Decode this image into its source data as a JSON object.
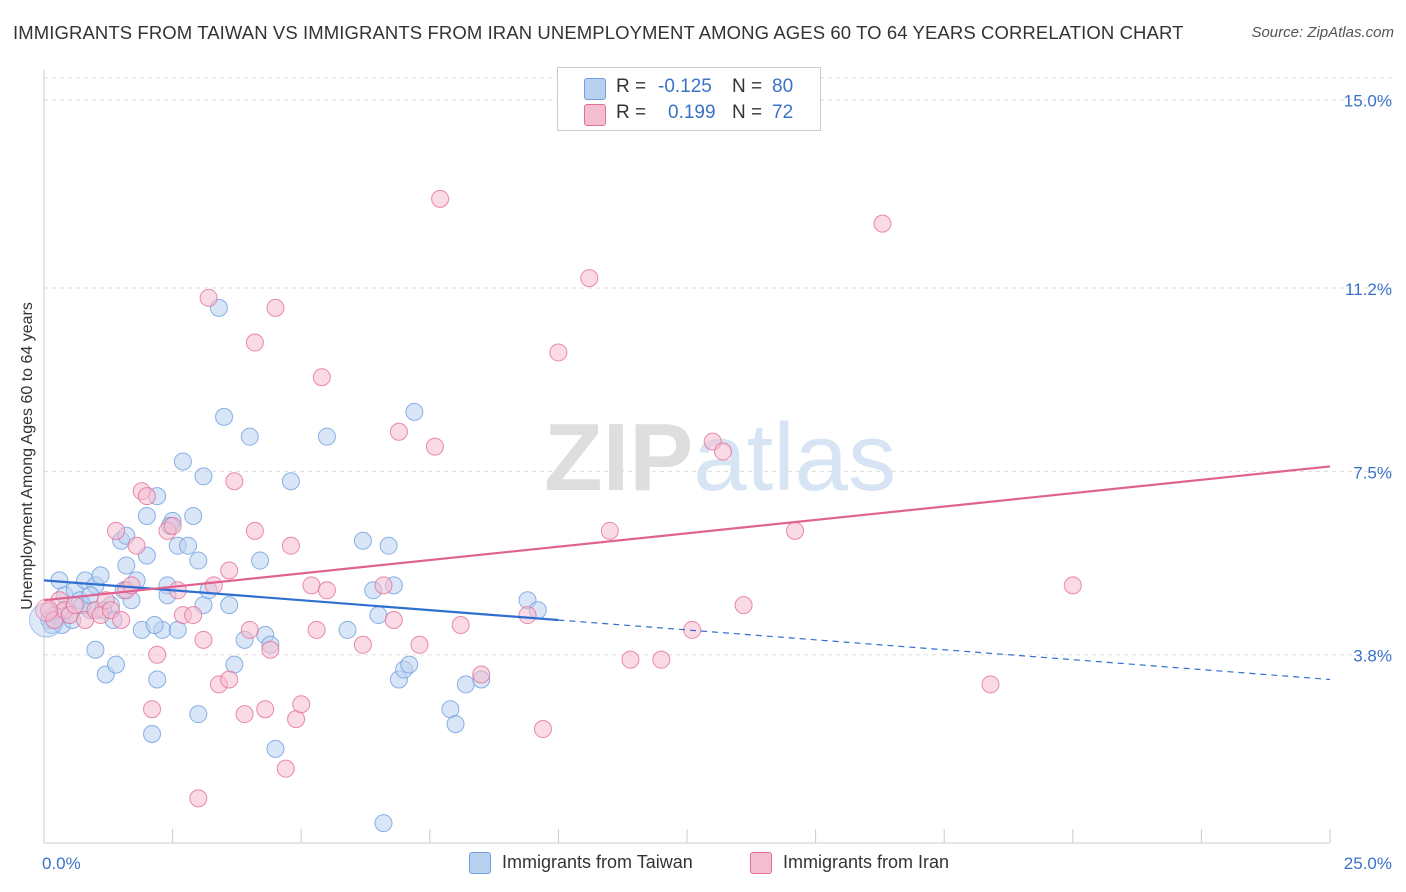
{
  "chart_data": {
    "type": "scatter",
    "title": "IMMIGRANTS FROM TAIWAN VS IMMIGRANTS FROM IRAN UNEMPLOYMENT AMONG AGES 60 TO 64 YEARS CORRELATION CHART",
    "source": "Source: ZipAtlas.com",
    "ylabel": "Unemployment Among Ages 60 to 64 years",
    "xlabel": "",
    "xlim": [
      0,
      25
    ],
    "ylim": [
      0,
      15.6
    ],
    "x_tick_labels": [
      "0.0%",
      "25.0%"
    ],
    "y_ticks": [
      3.8,
      7.5,
      11.2,
      15.0
    ],
    "y_tick_labels": [
      "3.8%",
      "7.5%",
      "11.2%",
      "15.0%"
    ],
    "grid": true,
    "watermark": "ZIPatlas",
    "legend": {
      "position": "top-center",
      "entries": [
        {
          "r_label": "R =",
          "r_value": "-0.125",
          "n_label": "N =",
          "n_value": "80"
        },
        {
          "r_label": "R =",
          "r_value": "0.199",
          "n_label": "N =",
          "n_value": "72"
        }
      ]
    },
    "series": [
      {
        "name": "Immigrants from Taiwan",
        "color": "#6f9fde",
        "fill": "#b9d1f1",
        "trend": {
          "x0": 0,
          "y0": 5.3,
          "x1": 10,
          "y1": 4.5,
          "dash_to_x": 25,
          "dash_to_y": 3.3
        },
        "points": [
          [
            0.1,
            4.5
          ],
          [
            0.2,
            4.6
          ],
          [
            0.3,
            5.3
          ],
          [
            0.4,
            4.7
          ],
          [
            0.4,
            5.0
          ],
          [
            0.5,
            4.6
          ],
          [
            0.6,
            5.1
          ],
          [
            0.7,
            4.9
          ],
          [
            0.8,
            5.3
          ],
          [
            0.9,
            4.7
          ],
          [
            1.0,
            5.2
          ],
          [
            1.1,
            5.4
          ],
          [
            1.0,
            3.9
          ],
          [
            1.2,
            3.4
          ],
          [
            1.3,
            4.8
          ],
          [
            1.4,
            3.6
          ],
          [
            1.5,
            6.1
          ],
          [
            1.6,
            5.6
          ],
          [
            1.6,
            6.2
          ],
          [
            1.7,
            4.9
          ],
          [
            1.8,
            5.3
          ],
          [
            1.9,
            4.3
          ],
          [
            2.0,
            6.6
          ],
          [
            2.0,
            5.8
          ],
          [
            2.1,
            2.2
          ],
          [
            2.2,
            3.3
          ],
          [
            2.2,
            7.0
          ],
          [
            2.3,
            4.3
          ],
          [
            2.4,
            5.2
          ],
          [
            2.4,
            5.0
          ],
          [
            2.5,
            6.5
          ],
          [
            2.6,
            4.3
          ],
          [
            2.6,
            6.0
          ],
          [
            2.7,
            7.7
          ],
          [
            2.8,
            6.0
          ],
          [
            2.9,
            6.6
          ],
          [
            3.0,
            5.7
          ],
          [
            3.0,
            2.6
          ],
          [
            3.1,
            7.4
          ],
          [
            3.1,
            4.8
          ],
          [
            3.2,
            5.1
          ],
          [
            3.4,
            10.8
          ],
          [
            3.5,
            8.6
          ],
          [
            3.6,
            4.8
          ],
          [
            3.7,
            3.6
          ],
          [
            3.9,
            4.1
          ],
          [
            4.0,
            8.2
          ],
          [
            4.2,
            5.7
          ],
          [
            4.3,
            4.2
          ],
          [
            4.4,
            4.0
          ],
          [
            4.5,
            1.9
          ],
          [
            4.8,
            7.3
          ],
          [
            5.5,
            8.2
          ],
          [
            5.9,
            4.3
          ],
          [
            6.2,
            6.1
          ],
          [
            6.4,
            5.1
          ],
          [
            6.5,
            4.6
          ],
          [
            6.6,
            0.4
          ],
          [
            6.7,
            6.0
          ],
          [
            6.8,
            5.2
          ],
          [
            6.9,
            3.3
          ],
          [
            7.0,
            3.5
          ],
          [
            7.1,
            3.6
          ],
          [
            7.2,
            8.7
          ],
          [
            7.9,
            2.7
          ],
          [
            8.0,
            2.4
          ],
          [
            8.2,
            3.2
          ],
          [
            8.5,
            3.3
          ],
          [
            9.4,
            4.9
          ],
          [
            9.6,
            4.7
          ],
          [
            0.15,
            4.4
          ],
          [
            0.35,
            4.4
          ],
          [
            0.55,
            4.5
          ],
          [
            0.75,
            4.8
          ],
          [
            0.9,
            5.0
          ],
          [
            1.15,
            4.7
          ],
          [
            1.35,
            4.5
          ],
          [
            1.55,
            5.1
          ],
          [
            2.15,
            4.4
          ],
          [
            2.45,
            6.4
          ]
        ]
      },
      {
        "name": "Immigrants from Iran",
        "color": "#e46e9a",
        "fill": "#f5bdd0",
        "trend": {
          "x0": 0,
          "y0": 4.9,
          "x1": 25,
          "y1": 7.6
        },
        "points": [
          [
            0.1,
            4.7
          ],
          [
            0.2,
            4.5
          ],
          [
            0.3,
            4.9
          ],
          [
            0.4,
            4.7
          ],
          [
            0.5,
            4.6
          ],
          [
            0.6,
            4.8
          ],
          [
            0.8,
            4.5
          ],
          [
            1.0,
            4.7
          ],
          [
            1.1,
            4.6
          ],
          [
            1.2,
            4.9
          ],
          [
            1.3,
            4.7
          ],
          [
            1.4,
            6.3
          ],
          [
            1.5,
            4.5
          ],
          [
            1.6,
            5.1
          ],
          [
            1.7,
            5.2
          ],
          [
            1.8,
            6.0
          ],
          [
            1.9,
            7.1
          ],
          [
            2.0,
            7.0
          ],
          [
            2.1,
            2.7
          ],
          [
            2.2,
            3.8
          ],
          [
            2.4,
            6.3
          ],
          [
            2.5,
            6.4
          ],
          [
            2.6,
            5.1
          ],
          [
            2.7,
            4.6
          ],
          [
            2.9,
            4.6
          ],
          [
            3.0,
            0.9
          ],
          [
            3.1,
            4.1
          ],
          [
            3.2,
            11.0
          ],
          [
            3.3,
            5.2
          ],
          [
            3.4,
            3.2
          ],
          [
            3.6,
            5.5
          ],
          [
            3.6,
            3.3
          ],
          [
            3.7,
            7.3
          ],
          [
            3.9,
            2.6
          ],
          [
            4.0,
            4.3
          ],
          [
            4.1,
            10.1
          ],
          [
            4.1,
            6.3
          ],
          [
            4.3,
            2.7
          ],
          [
            4.4,
            3.9
          ],
          [
            4.5,
            10.8
          ],
          [
            4.7,
            1.5
          ],
          [
            4.8,
            6.0
          ],
          [
            4.9,
            2.5
          ],
          [
            5.0,
            2.8
          ],
          [
            5.2,
            5.2
          ],
          [
            5.3,
            4.3
          ],
          [
            5.4,
            9.4
          ],
          [
            5.5,
            5.1
          ],
          [
            6.2,
            4.0
          ],
          [
            6.6,
            5.2
          ],
          [
            6.8,
            4.5
          ],
          [
            6.9,
            8.3
          ],
          [
            7.3,
            4.0
          ],
          [
            7.6,
            8.0
          ],
          [
            7.7,
            13.0
          ],
          [
            8.1,
            4.4
          ],
          [
            8.5,
            3.4
          ],
          [
            9.4,
            4.6
          ],
          [
            9.7,
            2.3
          ],
          [
            10.0,
            9.9
          ],
          [
            10.6,
            11.4
          ],
          [
            11.0,
            6.3
          ],
          [
            11.4,
            3.7
          ],
          [
            12.0,
            3.7
          ],
          [
            12.6,
            4.3
          ],
          [
            13.0,
            8.1
          ],
          [
            13.2,
            7.9
          ],
          [
            13.6,
            4.8
          ],
          [
            14.6,
            6.3
          ],
          [
            16.3,
            12.5
          ],
          [
            18.4,
            3.2
          ],
          [
            20.0,
            5.2
          ]
        ]
      }
    ]
  }
}
